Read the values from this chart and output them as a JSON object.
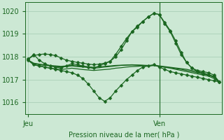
{
  "bg_color": "#cce8d4",
  "grid_color": "#aacfb8",
  "line_color": "#1a6620",
  "marker_color": "#1a6620",
  "xlabel": "Pression niveau de la mer( hPa )",
  "xlabel_color": "#1a6620",
  "tick_color": "#1a6620",
  "ylim": [
    1015.5,
    1020.4
  ],
  "yticks": [
    1016,
    1017,
    1018,
    1019,
    1020
  ],
  "xtick_labels": [
    "Jeu",
    "Ven"
  ],
  "xtick_positions": [
    0,
    24
  ],
  "vline_x": 24,
  "total_points": 36,
  "series": [
    [
      1017.9,
      1018.1,
      1017.85,
      1017.7,
      1017.6,
      1017.55,
      1017.5,
      1017.6,
      1017.7,
      1017.65,
      1017.6,
      1017.55,
      1017.5,
      1017.6,
      1017.7,
      1017.8,
      1018.0,
      1018.3,
      1018.7,
      1019.1,
      1019.35,
      1019.55,
      1019.75,
      1019.9,
      1019.85,
      1019.5,
      1019.15,
      1018.7,
      1018.2,
      1017.75,
      1017.5,
      1017.35,
      1017.25,
      1017.2,
      1017.15,
      1016.9
    ],
    [
      1017.85,
      1017.65,
      1017.6,
      1017.55,
      1017.5,
      1017.45,
      1017.4,
      1017.35,
      1017.3,
      1017.2,
      1017.05,
      1016.8,
      1016.5,
      1016.2,
      1016.05,
      1016.2,
      1016.5,
      1016.75,
      1017.0,
      1017.2,
      1017.4,
      1017.55,
      1017.6,
      1017.65,
      1017.55,
      1017.45,
      1017.35,
      1017.3,
      1017.25,
      1017.2,
      1017.15,
      1017.1,
      1017.05,
      1017.0,
      1016.95,
      1016.9
    ],
    [
      1017.85,
      1017.65,
      1017.6,
      1017.55,
      1017.5,
      1017.47,
      1017.44,
      1017.47,
      1017.5,
      1017.47,
      1017.44,
      1017.42,
      1017.4,
      1017.42,
      1017.44,
      1017.46,
      1017.5,
      1017.52,
      1017.55,
      1017.57,
      1017.58,
      1017.6,
      1017.6,
      1017.62,
      1017.58,
      1017.54,
      1017.5,
      1017.45,
      1017.4,
      1017.35,
      1017.3,
      1017.25,
      1017.2,
      1017.15,
      1017.05,
      1016.9
    ],
    [
      1017.85,
      1017.7,
      1017.65,
      1017.62,
      1017.6,
      1017.57,
      1017.55,
      1017.57,
      1017.6,
      1017.57,
      1017.55,
      1017.53,
      1017.5,
      1017.52,
      1017.55,
      1017.57,
      1017.6,
      1017.62,
      1017.63,
      1017.64,
      1017.63,
      1017.62,
      1017.6,
      1017.62,
      1017.58,
      1017.55,
      1017.52,
      1017.48,
      1017.45,
      1017.4,
      1017.35,
      1017.3,
      1017.25,
      1017.2,
      1017.1,
      1016.9
    ],
    [
      1017.85,
      1017.72,
      1017.68,
      1017.65,
      1017.62,
      1017.6,
      1017.58,
      1017.6,
      1017.62,
      1017.6,
      1017.58,
      1017.56,
      1017.54,
      1017.56,
      1017.58,
      1017.6,
      1017.62,
      1017.63,
      1017.64,
      1017.65,
      1017.64,
      1017.63,
      1017.62,
      1017.63,
      1017.6,
      1017.57,
      1017.54,
      1017.51,
      1017.48,
      1017.45,
      1017.4,
      1017.35,
      1017.3,
      1017.22,
      1017.12,
      1016.9
    ],
    [
      1017.9,
      1018.05,
      1018.1,
      1018.12,
      1018.1,
      1018.05,
      1017.95,
      1017.85,
      1017.8,
      1017.75,
      1017.72,
      1017.68,
      1017.65,
      1017.68,
      1017.72,
      1017.8,
      1018.1,
      1018.45,
      1018.8,
      1019.1,
      1019.3,
      1019.55,
      1019.75,
      1019.9,
      1019.85,
      1019.45,
      1019.1,
      1018.6,
      1018.1,
      1017.75,
      1017.5,
      1017.4,
      1017.35,
      1017.3,
      1017.2,
      1016.9
    ]
  ],
  "marker_series": [
    0,
    1,
    5
  ],
  "marker": "D",
  "marker_size": 2.5,
  "linewidth": 0.9
}
